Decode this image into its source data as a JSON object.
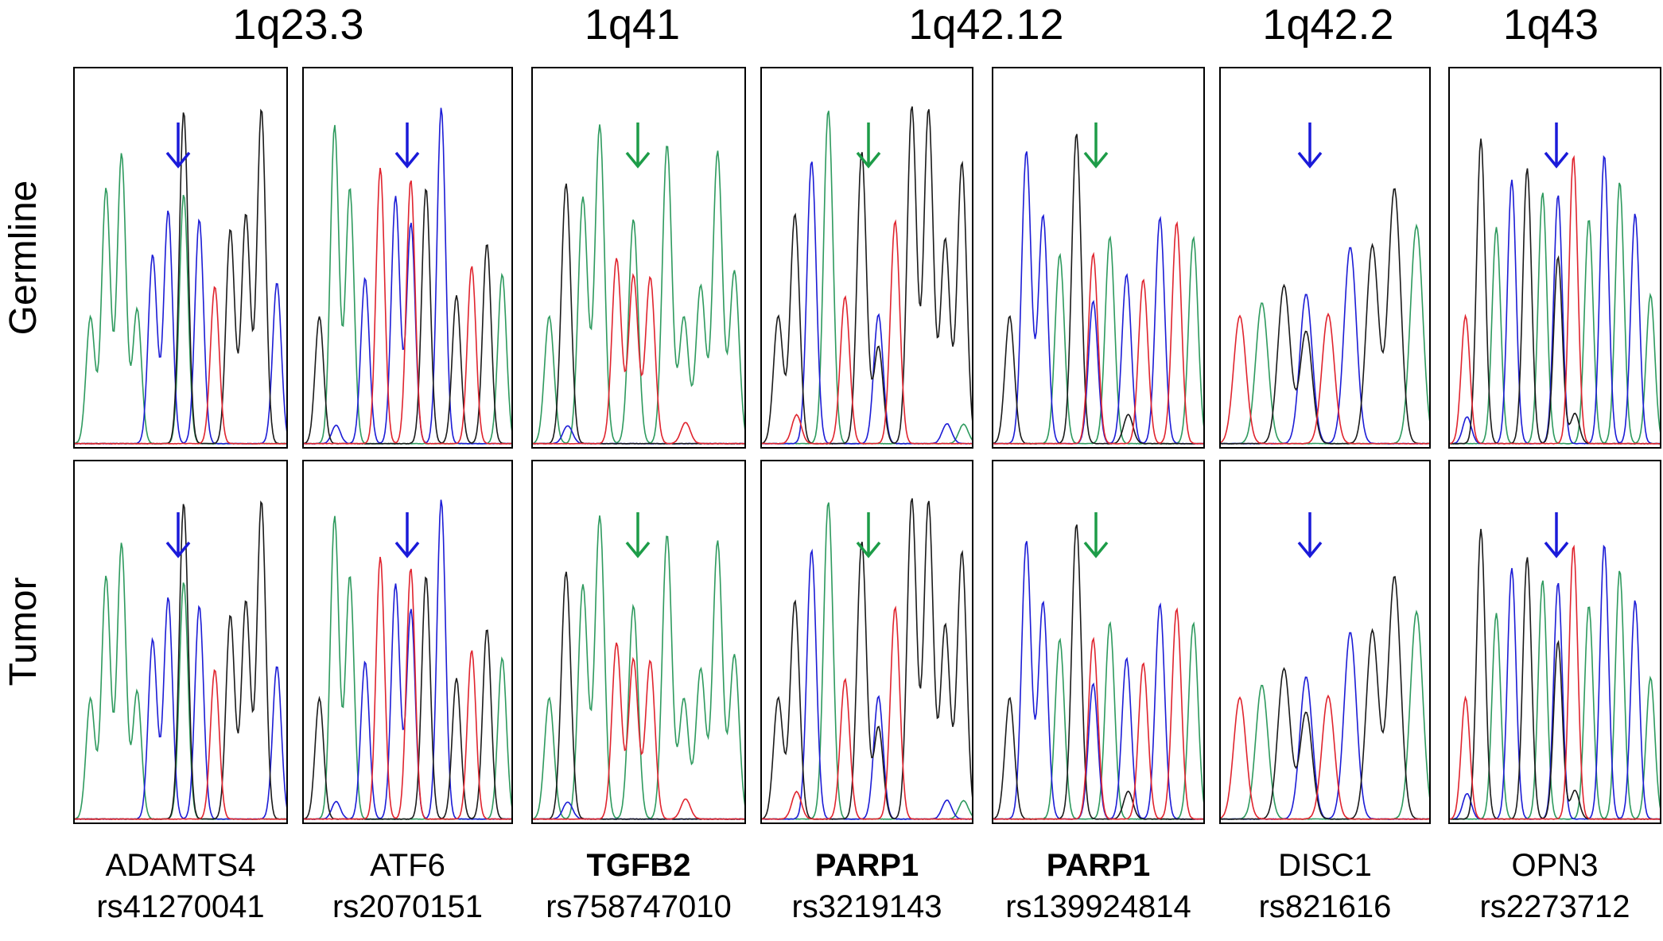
{
  "colors": {
    "A": "#2e9a5e",
    "C": "#1c1cd6",
    "G": "#1a1a1a",
    "T": "#e0242e",
    "arrow_blue": "#1a1ad9",
    "arrow_green": "#1d9c48"
  },
  "row_labels": [
    "Germline",
    "Tumor"
  ],
  "bands": [
    {
      "label": "1q23.3"
    },
    {
      "label": "1q41"
    },
    {
      "label": "1q42.12"
    },
    {
      "label": "1q42.2"
    },
    {
      "label": "1q43"
    }
  ],
  "samples": [
    {
      "gene": "ADAMTS4",
      "rs": "rs41270041",
      "bold": false,
      "arrow": "blue-arrow-icon",
      "germline": [
        "A",
        "A",
        "A",
        "A",
        "C",
        "C",
        "G",
        "C",
        "T",
        "G",
        "G",
        "G",
        "C"
      ],
      "tumor": [
        "A",
        "A",
        "A",
        "A",
        "C",
        "C",
        "G",
        "C",
        "T",
        "G",
        "G",
        "G",
        "C"
      ]
    },
    {
      "gene": "ATF6",
      "rs": "rs2070151",
      "bold": false,
      "arrow": "blue-arrow-icon",
      "germline": [
        "G",
        "A",
        "A",
        "C",
        "T",
        "C",
        "T",
        "G",
        "C",
        "G",
        "T",
        "G",
        "A"
      ],
      "tumor": [
        "G",
        "A",
        "A",
        "C",
        "T",
        "C",
        "T",
        "G",
        "C",
        "G",
        "T",
        "G",
        "A"
      ]
    },
    {
      "gene": "TGFB2",
      "rs": "rs758747010",
      "bold": true,
      "arrow": "green-arrow-icon",
      "germline": [
        "A",
        "G",
        "A",
        "A",
        "T",
        "A",
        "T",
        "A",
        "A",
        "A",
        "A",
        "A"
      ],
      "tumor": [
        "A",
        "G",
        "A",
        "A",
        "T",
        "A",
        "T",
        "A",
        "A",
        "A",
        "A",
        "A"
      ]
    },
    {
      "gene": "PARP1",
      "rs": "rs3219143",
      "bold": true,
      "arrow": "green-arrow-icon",
      "germline": [
        "G",
        "G",
        "C",
        "A",
        "T",
        "G",
        "C",
        "T",
        "G",
        "G",
        "G",
        "G"
      ],
      "tumor": [
        "G",
        "G",
        "C",
        "A",
        "T",
        "G",
        "C",
        "T",
        "G",
        "G",
        "G",
        "G"
      ]
    },
    {
      "gene": "PARP1",
      "rs": "rs139924814",
      "bold": true,
      "arrow": "green-arrow-icon",
      "germline": [
        "G",
        "C",
        "C",
        "A",
        "G",
        "T",
        "A",
        "C",
        "T",
        "C",
        "T",
        "A"
      ],
      "tumor": [
        "G",
        "C",
        "C",
        "A",
        "G",
        "T",
        "A",
        "C",
        "T",
        "C",
        "T",
        "A"
      ]
    },
    {
      "gene": "DISC1",
      "rs": "rs821616",
      "bold": false,
      "arrow": "blue-arrow-icon",
      "germline": [
        "T",
        "A",
        "G",
        "C",
        "T",
        "C",
        "G",
        "G",
        "A"
      ],
      "tumor": [
        "T",
        "A",
        "G",
        "C",
        "T",
        "C",
        "G",
        "G",
        "A"
      ]
    },
    {
      "gene": "OPN3",
      "rs": "rs2273712",
      "bold": false,
      "arrow": "blue-arrow-icon",
      "germline": [
        "T",
        "G",
        "A",
        "C",
        "G",
        "A",
        "C",
        "T",
        "A",
        "C",
        "A",
        "C",
        "A"
      ],
      "tumor": [
        "T",
        "G",
        "A",
        "C",
        "G",
        "A",
        "C",
        "T",
        "A",
        "C",
        "A",
        "C",
        "A"
      ]
    }
  ]
}
